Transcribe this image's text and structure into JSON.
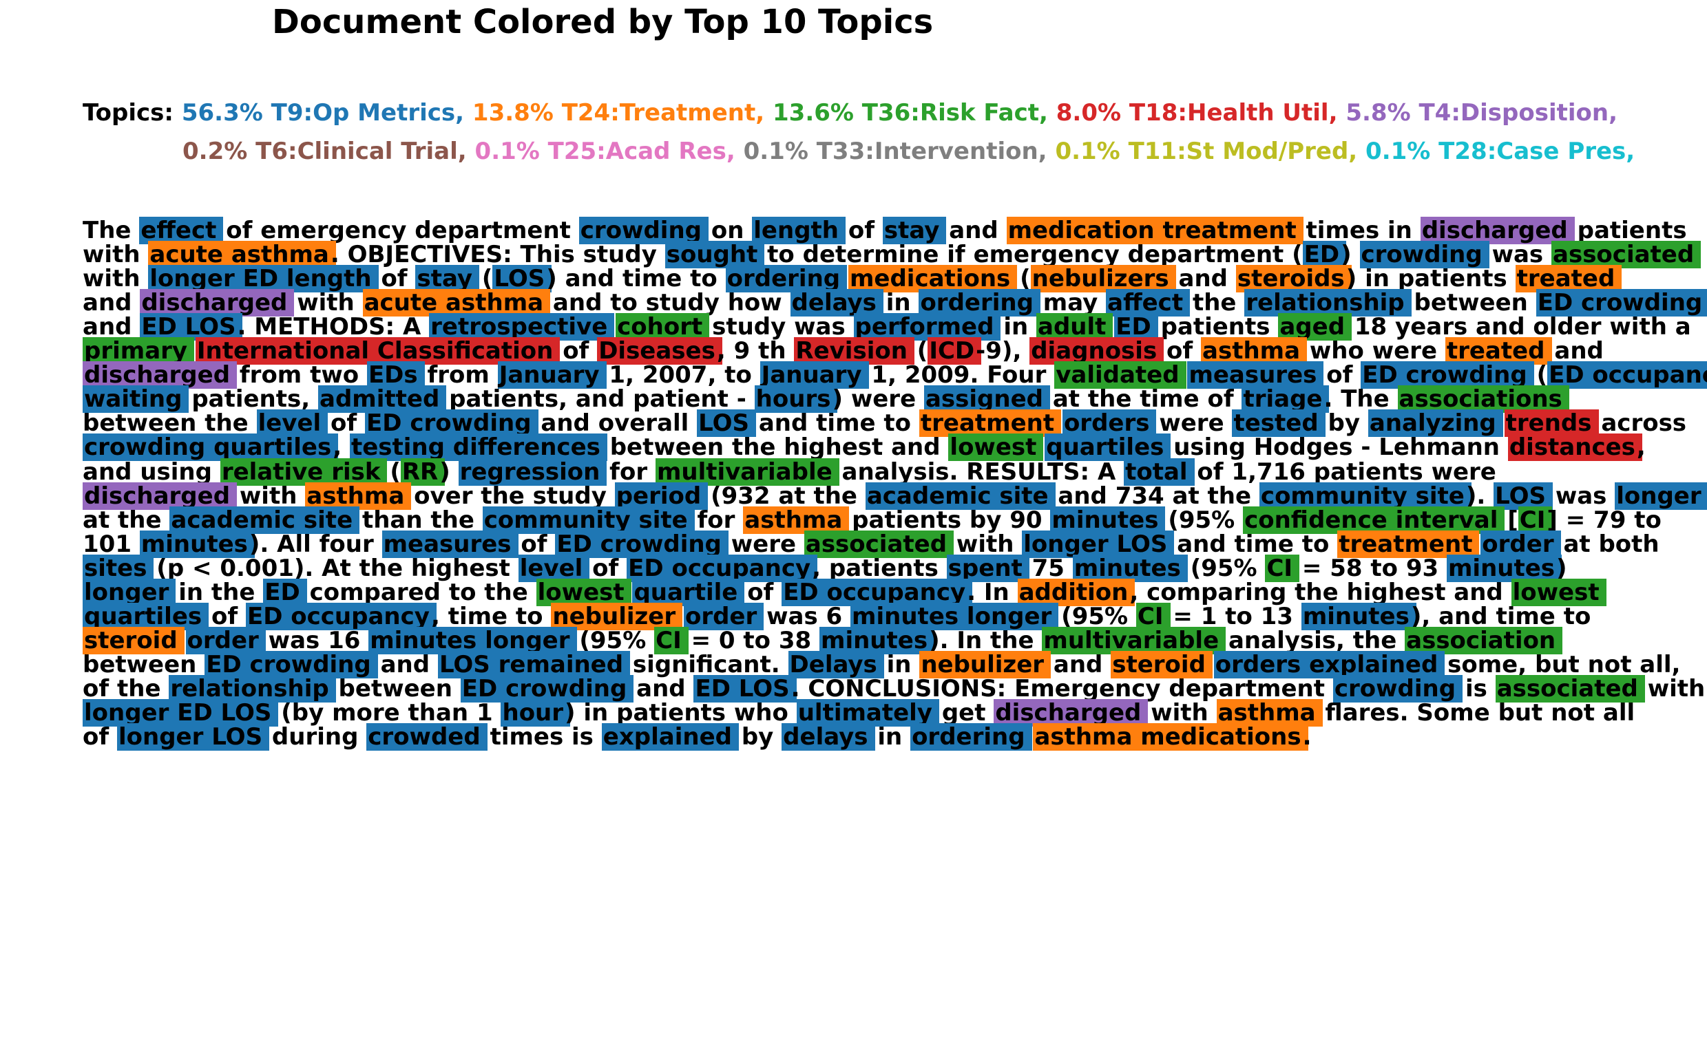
{
  "title": "Document Colored by Top 10 Topics",
  "colors": {
    "T9": "#1f77b4",
    "T24": "#ff7f0e",
    "T36": "#2ca02c",
    "T18": "#d62728",
    "T4": "#9467bd",
    "T6": "#8c564b",
    "T25": "#e377c2",
    "T33": "#7f7f7f",
    "T11": "#bcbd22",
    "T28": "#17becf"
  },
  "topics": {
    "label": "Topics:",
    "rows": [
      [
        {
          "text": "56.3% T9:Op Metrics,",
          "topic": "T9"
        },
        {
          "text": "13.8% T24:Treatment,",
          "topic": "T24"
        },
        {
          "text": "13.6% T36:Risk Fact,",
          "topic": "T36"
        },
        {
          "text": "8.0% T18:Health Util,",
          "topic": "T18"
        },
        {
          "text": "5.8% T4:Disposition,",
          "topic": "T4"
        }
      ],
      [
        {
          "text": "0.2% T6:Clinical Trial,",
          "topic": "T6"
        },
        {
          "text": "0.1% T25:Acad Res,",
          "topic": "T25"
        },
        {
          "text": "0.1% T33:Intervention,",
          "topic": "T33"
        },
        {
          "text": "0.1% T11:St Mod/Pred,",
          "topic": "T11"
        },
        {
          "text": "0.1% T28:Case Pres,",
          "topic": "T28"
        }
      ]
    ]
  },
  "document": [
    [
      [
        "The"
      ],
      [
        "effect",
        "T9"
      ],
      [
        "of emergency department"
      ],
      [
        "crowding",
        "T9"
      ],
      [
        "on"
      ],
      [
        "length",
        "T9"
      ],
      [
        "of"
      ],
      [
        "stay",
        "T9"
      ],
      [
        "and"
      ],
      [
        "medication treatment",
        "T24"
      ],
      [
        "times in"
      ],
      [
        "discharged",
        "T4"
      ],
      [
        "patients"
      ]
    ],
    [
      [
        "with"
      ],
      [
        "acute asthma",
        "T24"
      ],
      [
        ". OBJECTIVES: This study"
      ],
      [
        "sought",
        "T9"
      ],
      [
        "to determine if emergency department ("
      ],
      [
        "ED",
        "T9"
      ],
      [
        ")"
      ],
      [
        "crowding",
        "T9"
      ],
      [
        "was"
      ],
      [
        "associated",
        "T36"
      ]
    ],
    [
      [
        "with"
      ],
      [
        "longer ED length",
        "T9"
      ],
      [
        "of"
      ],
      [
        "stay",
        "T9"
      ],
      [
        "("
      ],
      [
        "LOS",
        "T9"
      ],
      [
        ") and time to"
      ],
      [
        "ordering",
        "T9"
      ],
      [
        "medications",
        "T24"
      ],
      [
        "("
      ],
      [
        "nebulizers",
        "T24"
      ],
      [
        "and"
      ],
      [
        "steroids",
        "T24"
      ],
      [
        ") in patients"
      ],
      [
        "treated",
        "T24"
      ]
    ],
    [
      [
        "and"
      ],
      [
        "discharged",
        "T4"
      ],
      [
        "with"
      ],
      [
        "acute asthma",
        "T24"
      ],
      [
        "and to study how"
      ],
      [
        "delays",
        "T9"
      ],
      [
        "in"
      ],
      [
        "ordering",
        "T9"
      ],
      [
        "may"
      ],
      [
        "affect",
        "T9"
      ],
      [
        "the"
      ],
      [
        "relationship",
        "T9"
      ],
      [
        "between"
      ],
      [
        "ED crowding",
        "T9"
      ]
    ],
    [
      [
        "and"
      ],
      [
        "ED LOS",
        "T9"
      ],
      [
        ". METHODS: A"
      ],
      [
        "retrospective",
        "T9"
      ],
      [
        "cohort",
        "T36"
      ],
      [
        "study was"
      ],
      [
        "performed",
        "T9"
      ],
      [
        "in"
      ],
      [
        "adult",
        "T36"
      ],
      [
        "ED",
        "T9"
      ],
      [
        "patients"
      ],
      [
        "aged",
        "T36"
      ],
      [
        "18 years and older with a"
      ]
    ],
    [
      [
        "primary",
        "T36"
      ],
      [
        "International Classification",
        "T18"
      ],
      [
        "of"
      ],
      [
        "Diseases",
        "T18"
      ],
      [
        ", 9 th"
      ],
      [
        "Revision",
        "T18"
      ],
      [
        "("
      ],
      [
        "ICD",
        "T18"
      ],
      [
        "-9),"
      ],
      [
        "diagnosis",
        "T18"
      ],
      [
        "of"
      ],
      [
        "asthma",
        "T24"
      ],
      [
        "who were"
      ],
      [
        "treated",
        "T24"
      ],
      [
        "and"
      ]
    ],
    [
      [
        "discharged",
        "T4"
      ],
      [
        "from two"
      ],
      [
        "EDs",
        "T9"
      ],
      [
        "from"
      ],
      [
        "January",
        "T9"
      ],
      [
        "1, 2007, to"
      ],
      [
        "January",
        "T9"
      ],
      [
        "1, 2009. Four"
      ],
      [
        "validated",
        "T36"
      ],
      [
        "measures",
        "T9"
      ],
      [
        "of"
      ],
      [
        "ED crowding",
        "T9"
      ],
      [
        "("
      ],
      [
        "ED occupancy",
        "T9"
      ],
      [
        ","
      ]
    ],
    [
      [
        "waiting",
        "T9"
      ],
      [
        "patients,"
      ],
      [
        "admitted",
        "T9"
      ],
      [
        "patients, and patient -"
      ],
      [
        "hours",
        "T9"
      ],
      [
        ") were"
      ],
      [
        "assigned",
        "T9"
      ],
      [
        "at the time of"
      ],
      [
        "triage",
        "T9"
      ],
      [
        ". The"
      ],
      [
        "associations",
        "T36"
      ]
    ],
    [
      [
        "between the"
      ],
      [
        "level",
        "T9"
      ],
      [
        "of"
      ],
      [
        "ED crowding",
        "T9"
      ],
      [
        "and overall"
      ],
      [
        "LOS",
        "T9"
      ],
      [
        "and time to"
      ],
      [
        "treatment",
        "T24"
      ],
      [
        "orders",
        "T9"
      ],
      [
        "were"
      ],
      [
        "tested",
        "T9"
      ],
      [
        "by"
      ],
      [
        "analyzing",
        "T9"
      ],
      [
        "trends",
        "T18"
      ],
      [
        "across"
      ]
    ],
    [
      [
        "crowding quartiles",
        "T9"
      ],
      [
        ","
      ],
      [
        "testing differences",
        "T9"
      ],
      [
        "between the highest and"
      ],
      [
        "lowest",
        "T36"
      ],
      [
        "quartiles",
        "T9"
      ],
      [
        "using Hodges - Lehmann"
      ],
      [
        "distances",
        "T18"
      ],
      [
        ","
      ]
    ],
    [
      [
        "and using"
      ],
      [
        "relative risk",
        "T36"
      ],
      [
        "("
      ],
      [
        "RR",
        "T36"
      ],
      [
        ")"
      ],
      [
        "regression",
        "T9"
      ],
      [
        "for"
      ],
      [
        "multivariable",
        "T36"
      ],
      [
        "analysis. RESULTS: A"
      ],
      [
        "total",
        "T9"
      ],
      [
        "of 1,716 patients were"
      ]
    ],
    [
      [
        "discharged",
        "T4"
      ],
      [
        "with"
      ],
      [
        "asthma",
        "T24"
      ],
      [
        "over the study"
      ],
      [
        "period",
        "T9"
      ],
      [
        "(932 at the"
      ],
      [
        "academic site",
        "T9"
      ],
      [
        "and 734 at the"
      ],
      [
        "community site",
        "T9"
      ],
      [
        ")."
      ],
      [
        "LOS",
        "T9"
      ],
      [
        "was"
      ],
      [
        "longer",
        "T9"
      ]
    ],
    [
      [
        "at the"
      ],
      [
        "academic site",
        "T9"
      ],
      [
        "than the"
      ],
      [
        "community site",
        "T9"
      ],
      [
        "for"
      ],
      [
        "asthma",
        "T24"
      ],
      [
        "patients by 90"
      ],
      [
        "minutes",
        "T9"
      ],
      [
        "(95%"
      ],
      [
        "confidence interval",
        "T36"
      ],
      [
        "["
      ],
      [
        "CI",
        "T36"
      ],
      [
        "] = 79 to"
      ]
    ],
    [
      [
        "101"
      ],
      [
        "minutes",
        "T9"
      ],
      [
        "). All four"
      ],
      [
        "measures",
        "T9"
      ],
      [
        "of"
      ],
      [
        "ED crowding",
        "T9"
      ],
      [
        "were"
      ],
      [
        "associated",
        "T36"
      ],
      [
        "with"
      ],
      [
        "longer LOS",
        "T9"
      ],
      [
        "and time to"
      ],
      [
        "treatment",
        "T24"
      ],
      [
        "order",
        "T9"
      ],
      [
        "at both"
      ]
    ],
    [
      [
        "sites",
        "T9"
      ],
      [
        "(p < 0.001). At the highest"
      ],
      [
        "level",
        "T9"
      ],
      [
        "of"
      ],
      [
        "ED occupancy",
        "T9"
      ],
      [
        ", patients"
      ],
      [
        "spent",
        "T9"
      ],
      [
        "75"
      ],
      [
        "minutes",
        "T9"
      ],
      [
        "(95%"
      ],
      [
        "CI",
        "T36"
      ],
      [
        "= 58 to 93"
      ],
      [
        "minutes",
        "T9"
      ],
      [
        ")"
      ]
    ],
    [
      [
        "longer",
        "T9"
      ],
      [
        "in the"
      ],
      [
        "ED",
        "T9"
      ],
      [
        "compared to the"
      ],
      [
        "lowest",
        "T36"
      ],
      [
        "quartile",
        "T9"
      ],
      [
        "of"
      ],
      [
        "ED occupancy",
        "T9"
      ],
      [
        ". In"
      ],
      [
        "addition",
        "T24"
      ],
      [
        ", comparing the highest and"
      ],
      [
        "lowest",
        "T36"
      ]
    ],
    [
      [
        "quartiles",
        "T9"
      ],
      [
        "of"
      ],
      [
        "ED occupancy",
        "T9"
      ],
      [
        ", time to"
      ],
      [
        "nebulizer",
        "T24"
      ],
      [
        "order",
        "T9"
      ],
      [
        "was 6"
      ],
      [
        "minutes longer",
        "T9"
      ],
      [
        "(95%"
      ],
      [
        "CI",
        "T36"
      ],
      [
        "= 1 to 13"
      ],
      [
        "minutes",
        "T9"
      ],
      [
        "), and time to"
      ]
    ],
    [
      [
        "steroid",
        "T24"
      ],
      [
        "order",
        "T9"
      ],
      [
        "was 16"
      ],
      [
        "minutes longer",
        "T9"
      ],
      [
        "(95%"
      ],
      [
        "CI",
        "T36"
      ],
      [
        "= 0 to 38"
      ],
      [
        "minutes",
        "T9"
      ],
      [
        "). In the"
      ],
      [
        "multivariable",
        "T36"
      ],
      [
        "analysis, the"
      ],
      [
        "association",
        "T36"
      ]
    ],
    [
      [
        "between"
      ],
      [
        "ED crowding",
        "T9"
      ],
      [
        "and"
      ],
      [
        "LOS remained",
        "T9"
      ],
      [
        "significant."
      ],
      [
        "Delays",
        "T9"
      ],
      [
        "in"
      ],
      [
        "nebulizer",
        "T24"
      ],
      [
        "and"
      ],
      [
        "steroid",
        "T24"
      ],
      [
        "orders explained",
        "T9"
      ],
      [
        "some, but not all,"
      ]
    ],
    [
      [
        "of the"
      ],
      [
        "relationship",
        "T9"
      ],
      [
        "between"
      ],
      [
        "ED crowding",
        "T9"
      ],
      [
        "and"
      ],
      [
        "ED LOS",
        "T9"
      ],
      [
        ". CONCLUSIONS: Emergency department"
      ],
      [
        "crowding",
        "T9"
      ],
      [
        "is"
      ],
      [
        "associated",
        "T36"
      ],
      [
        "with"
      ]
    ],
    [
      [
        "longer ED LOS",
        "T9"
      ],
      [
        "(by more than 1"
      ],
      [
        "hour",
        "T9"
      ],
      [
        ") in patients who"
      ],
      [
        "ultimately",
        "T9"
      ],
      [
        "get"
      ],
      [
        "discharged",
        "T4"
      ],
      [
        "with"
      ],
      [
        "asthma",
        "T24"
      ],
      [
        "flares. Some but not all"
      ]
    ],
    [
      [
        "of"
      ],
      [
        "longer LOS",
        "T9"
      ],
      [
        "during"
      ],
      [
        "crowded",
        "T9"
      ],
      [
        "times is"
      ],
      [
        "explained",
        "T9"
      ],
      [
        "by"
      ],
      [
        "delays",
        "T9"
      ],
      [
        "in"
      ],
      [
        "ordering",
        "T9"
      ],
      [
        "asthma medications",
        "T24"
      ],
      [
        "."
      ]
    ]
  ]
}
